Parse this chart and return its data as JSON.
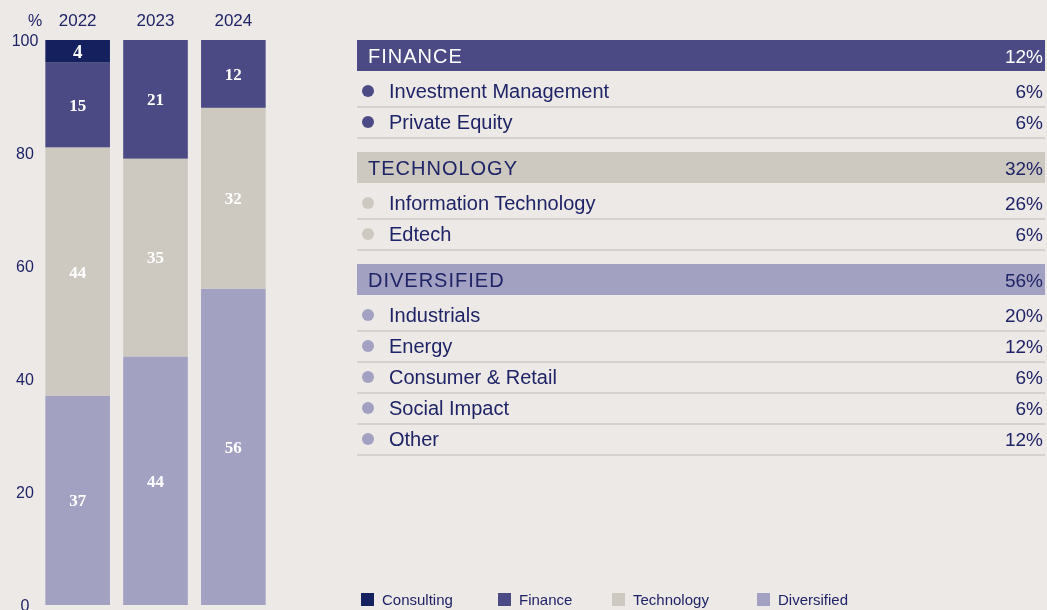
{
  "chart_data": [
    {
      "type": "bar",
      "stacked": true,
      "ylabel": "%",
      "categories": [
        "2022",
        "2023",
        "2024"
      ],
      "ylim": [
        0,
        100
      ],
      "yticks": [
        0,
        20,
        40,
        60,
        80,
        100
      ],
      "data_labels": true,
      "legend": "bottom",
      "grid": false,
      "series": [
        {
          "name": "Diversified",
          "color": "#a3a1c2",
          "values": [
            37,
            44,
            56
          ]
        },
        {
          "name": "Technology",
          "color": "#cdc8c0",
          "values": [
            44,
            35,
            32
          ]
        },
        {
          "name": "Finance",
          "color": "#4c4a85",
          "values": [
            15,
            21,
            12
          ]
        },
        {
          "name": "Consulting",
          "color": "#15205e",
          "values": [
            4,
            null,
            null
          ]
        }
      ]
    },
    {
      "type": "other",
      "title": "FINANCE",
      "totals": [
        "12%"
      ],
      "color": "#4c4a85",
      "categories": [
        "Investment Management",
        "Private Equity"
      ],
      "value_labels": [
        "6%",
        "6%"
      ]
    },
    {
      "type": "other",
      "title": "TECHNOLOGY",
      "totals": [
        "32%"
      ],
      "color": "#cdc8c0",
      "categories": [
        "Information Technology",
        "Edtech"
      ],
      "value_labels": [
        "26%",
        "6%"
      ]
    },
    {
      "type": "other",
      "title": "DIVERSIFIED",
      "totals": [
        "56%"
      ],
      "color": "#a3a1c2",
      "categories": [
        "Industrials",
        "Energy",
        "Consumer & Retail",
        "Social Impact",
        "Other"
      ],
      "value_labels": [
        "20%",
        "12%",
        "6%",
        "6%",
        "12%"
      ]
    }
  ]
}
